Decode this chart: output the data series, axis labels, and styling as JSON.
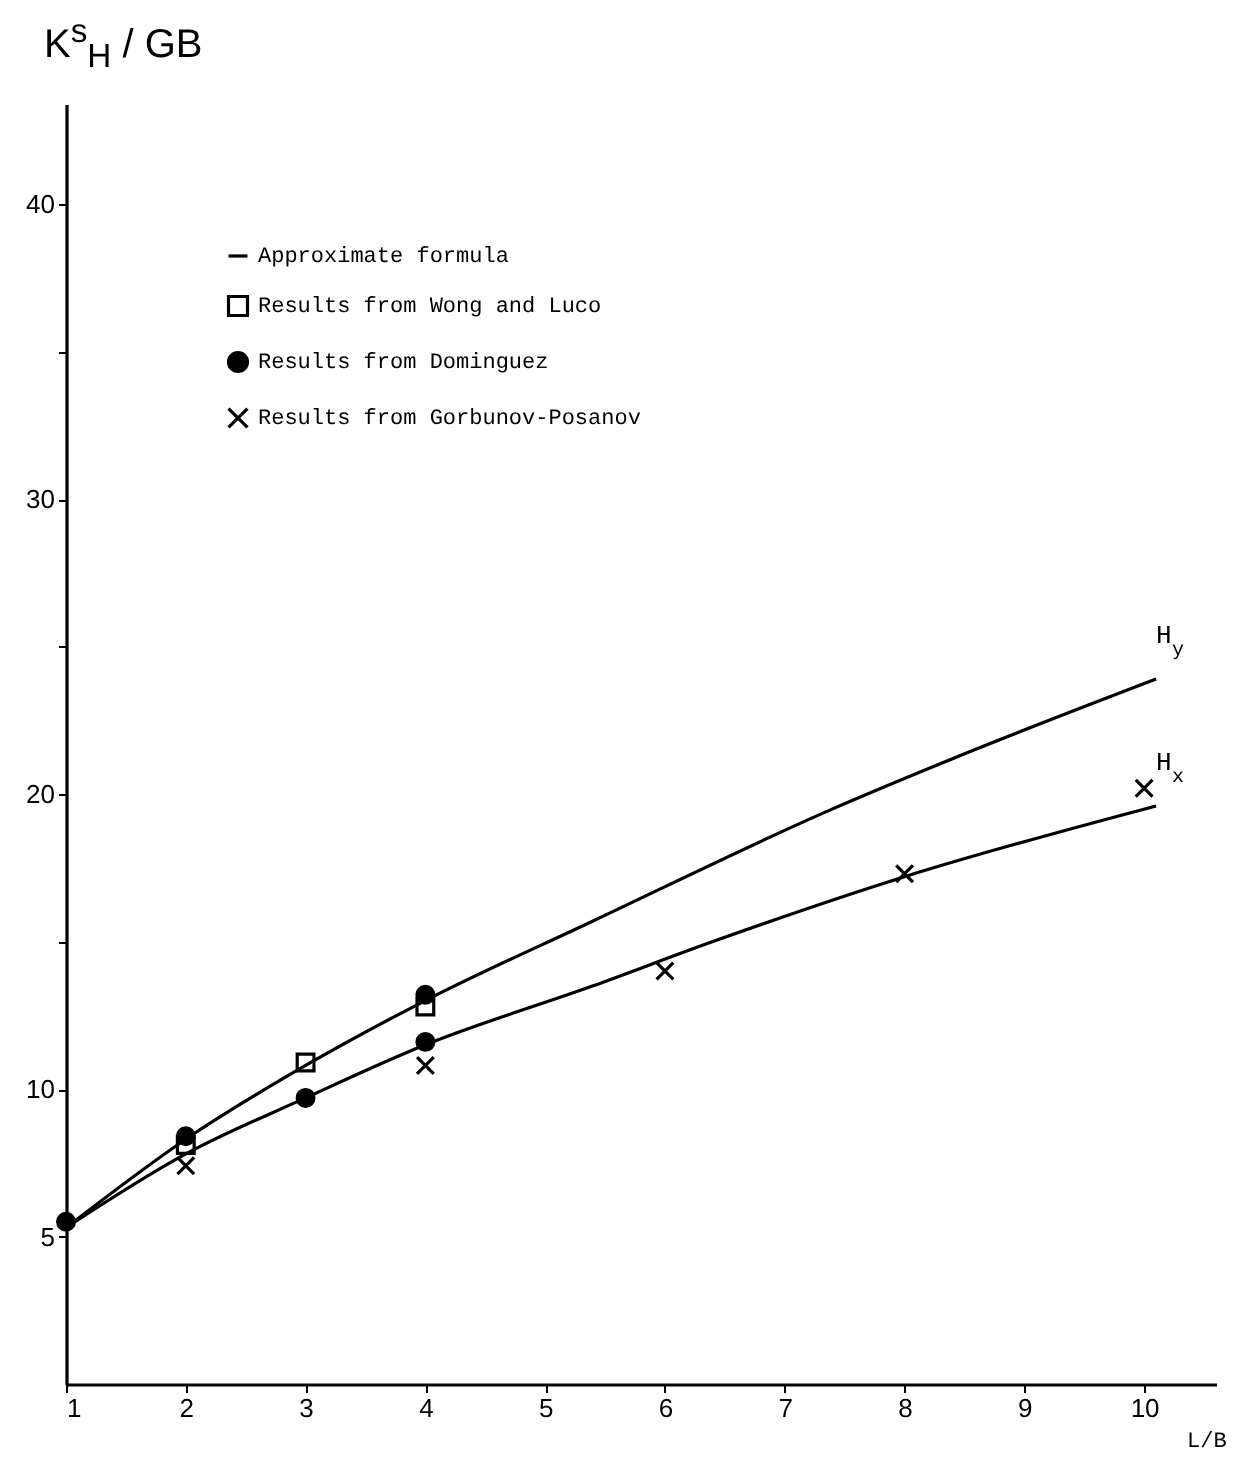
{
  "chart_data": {
    "type": "line",
    "xlabel": "L/B",
    "ylabel": "K$^{s}$$_{H}$ / GB",
    "xlim": [
      1,
      10.6
    ],
    "xticks": [
      1,
      2,
      3,
      4,
      5,
      6,
      7,
      8,
      9,
      10
    ],
    "ylim": [
      0,
      43.4
    ],
    "yticks": [
      5,
      10,
      {
        "value": 15,
        "label": null
      },
      20,
      {
        "value": 25,
        "label": null
      },
      30,
      {
        "value": 35,
        "label": null
      },
      40
    ],
    "grid": false,
    "legend": "top left",
    "series": [
      {
        "name": "Approximate formula",
        "marker": "none",
        "color": "#000000",
        "x": [
          1,
          2,
          3,
          4,
          5.4,
          7.4,
          8.4,
          10.1
        ],
        "values": [
          5.3,
          8.3,
          10.8,
          13.0,
          15.7,
          19.5,
          21.2,
          23.9
        ]
      },
      {
        "marker": "none",
        "color": "#000000",
        "x": [
          1,
          2,
          3,
          4,
          5.4,
          6.4,
          8.0,
          10.1
        ],
        "values": [
          5.3,
          7.8,
          9.7,
          11.5,
          13.5,
          15.0,
          17.2,
          19.6
        ]
      },
      {
        "name": "Results from Wong and Luco",
        "type": "scatter",
        "marker": "square",
        "color": "#000000",
        "x": [
          2,
          3,
          4
        ],
        "values": [
          8.1,
          10.9,
          12.8
        ]
      },
      {
        "name": "Results from Dominguez",
        "type": "scatter",
        "marker": "circle",
        "color": "#000000",
        "x": [
          1,
          2,
          3,
          4,
          4
        ],
        "values": [
          5.5,
          8.4,
          9.7,
          13.2,
          11.6
        ]
      },
      {
        "name": "Results from Gorbunov-Posanov",
        "type": "scatter",
        "marker": "cross",
        "color": "#000000",
        "x": [
          2,
          4,
          6,
          8,
          10
        ],
        "values": [
          7.4,
          10.8,
          14.0,
          17.3,
          20.2
        ]
      }
    ],
    "annotations": [
      "H$_{y}$",
      "H$_{x}$"
    ]
  }
}
